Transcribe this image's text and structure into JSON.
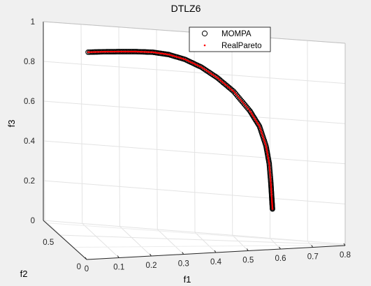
{
  "chart_data": {
    "type": "scatter",
    "title": "DTLZ6",
    "xlabel": "f1",
    "ylabel": "f2",
    "zlabel": "f3",
    "xlim": [
      0,
      0.8
    ],
    "ylim": [
      0,
      0.8
    ],
    "zlim": [
      0,
      1
    ],
    "x_ticks": [
      "0",
      "0.1",
      "0.2",
      "0.3",
      "0.4",
      "0.5",
      "0.6",
      "0.7",
      "0.8"
    ],
    "y_ticks": [
      "0",
      "0.5"
    ],
    "z_ticks": [
      "0",
      "0.2",
      "0.4",
      "0.6",
      "0.8",
      "1"
    ],
    "grid": true,
    "legend_position": "top-right",
    "series": [
      {
        "name": "MOMPA",
        "marker": "circle",
        "color": "#000000"
      },
      {
        "name": "RealPareto",
        "marker": "dot",
        "color": "#ff0000"
      }
    ],
    "front_f1_f3_points": [
      [
        0.0,
        0.84
      ],
      [
        0.05,
        0.845
      ],
      [
        0.1,
        0.848
      ],
      [
        0.15,
        0.85
      ],
      [
        0.2,
        0.849
      ],
      [
        0.25,
        0.838
      ],
      [
        0.3,
        0.814
      ],
      [
        0.35,
        0.775
      ],
      [
        0.4,
        0.72
      ],
      [
        0.45,
        0.65
      ],
      [
        0.5,
        0.55
      ],
      [
        0.53,
        0.47
      ],
      [
        0.55,
        0.37
      ],
      [
        0.56,
        0.28
      ],
      [
        0.565,
        0.18
      ],
      [
        0.568,
        0.1
      ],
      [
        0.57,
        0.05
      ]
    ]
  }
}
